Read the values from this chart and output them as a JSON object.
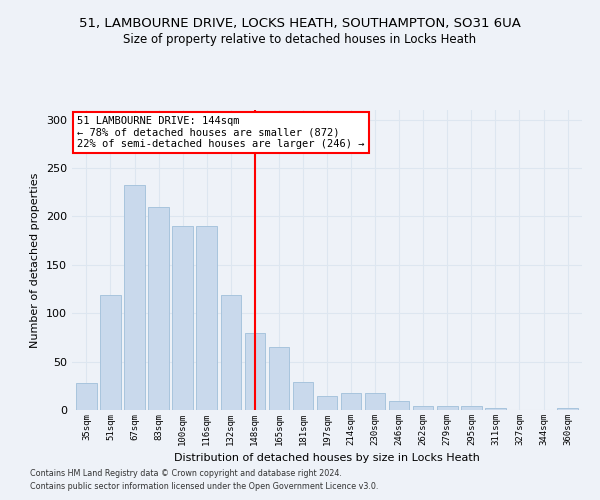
{
  "title": "51, LAMBOURNE DRIVE, LOCKS HEATH, SOUTHAMPTON, SO31 6UA",
  "subtitle": "Size of property relative to detached houses in Locks Heath",
  "xlabel": "Distribution of detached houses by size in Locks Heath",
  "ylabel": "Number of detached properties",
  "categories": [
    "35sqm",
    "51sqm",
    "67sqm",
    "83sqm",
    "100sqm",
    "116sqm",
    "132sqm",
    "148sqm",
    "165sqm",
    "181sqm",
    "197sqm",
    "214sqm",
    "230sqm",
    "246sqm",
    "262sqm",
    "279sqm",
    "295sqm",
    "311sqm",
    "327sqm",
    "344sqm",
    "360sqm"
  ],
  "values": [
    28,
    119,
    232,
    210,
    190,
    190,
    119,
    80,
    65,
    29,
    14,
    18,
    18,
    9,
    4,
    4,
    4,
    2,
    0,
    0,
    2
  ],
  "bar_color": "#c9d9ec",
  "bar_edge_color": "#a8c4dd",
  "grid_color": "#dde6f0",
  "annotation_line_color": "red",
  "annotation_text": "51 LAMBOURNE DRIVE: 144sqm\n← 78% of detached houses are smaller (872)\n22% of semi-detached houses are larger (246) →",
  "annotation_box_facecolor": "white",
  "annotation_box_edgecolor": "red",
  "footer_line1": "Contains HM Land Registry data © Crown copyright and database right 2024.",
  "footer_line2": "Contains public sector information licensed under the Open Government Licence v3.0.",
  "ylim": [
    0,
    310
  ],
  "yticks": [
    0,
    50,
    100,
    150,
    200,
    250,
    300
  ],
  "background_color": "#eef2f8",
  "title_fontsize": 9.5,
  "subtitle_fontsize": 8.5,
  "red_line_index": 7
}
